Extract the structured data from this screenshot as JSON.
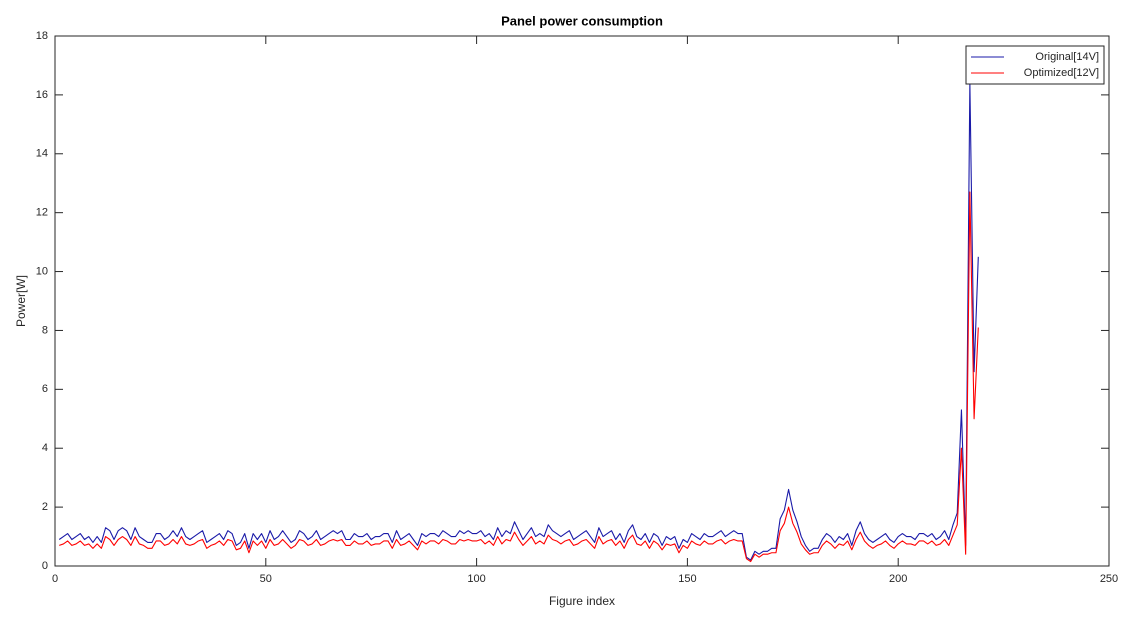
{
  "chart_data": {
    "type": "line",
    "title": "Panel power consumption",
    "x_label": "Figure index",
    "y_label": "Power[W]",
    "x": [
      1,
      2,
      3,
      4,
      5,
      6,
      7,
      8,
      9,
      10,
      11,
      12,
      13,
      14,
      15,
      16,
      17,
      18,
      19,
      20,
      21,
      22,
      23,
      24,
      25,
      26,
      27,
      28,
      29,
      30,
      31,
      32,
      33,
      34,
      35,
      36,
      37,
      38,
      39,
      40,
      41,
      42,
      43,
      44,
      45,
      46,
      47,
      48,
      49,
      50,
      51,
      52,
      53,
      54,
      55,
      56,
      57,
      58,
      59,
      60,
      61,
      62,
      63,
      64,
      65,
      66,
      67,
      68,
      69,
      70,
      71,
      72,
      73,
      74,
      75,
      76,
      77,
      78,
      79,
      80,
      81,
      82,
      83,
      84,
      85,
      86,
      87,
      88,
      89,
      90,
      91,
      92,
      93,
      94,
      95,
      96,
      97,
      98,
      99,
      100,
      101,
      102,
      103,
      104,
      105,
      106,
      107,
      108,
      109,
      110,
      111,
      112,
      113,
      114,
      115,
      116,
      117,
      118,
      119,
      120,
      121,
      122,
      123,
      124,
      125,
      126,
      127,
      128,
      129,
      130,
      131,
      132,
      133,
      134,
      135,
      136,
      137,
      138,
      139,
      140,
      141,
      142,
      143,
      144,
      145,
      146,
      147,
      148,
      149,
      150,
      151,
      152,
      153,
      154,
      155,
      156,
      157,
      158,
      159,
      160,
      161,
      162,
      163,
      164,
      165,
      166,
      167,
      168,
      169,
      170,
      171,
      172,
      173,
      174,
      175,
      176,
      177,
      178,
      179,
      180,
      181,
      182,
      183,
      184,
      185,
      186,
      187,
      188,
      189,
      190,
      191,
      192,
      193,
      194,
      195,
      196,
      197,
      198,
      199,
      200,
      201,
      202,
      203,
      204,
      205,
      206,
      207,
      208,
      209,
      210,
      211,
      212,
      213,
      214,
      215,
      216,
      217,
      218,
      219
    ],
    "series": [
      {
        "name": "Original[14V]",
        "color": "#1a1aa8",
        "values": [
          0.9,
          1.0,
          1.1,
          0.9,
          1.0,
          1.1,
          0.9,
          1.0,
          0.8,
          1.0,
          0.8,
          1.3,
          1.2,
          0.9,
          1.2,
          1.3,
          1.2,
          0.9,
          1.3,
          1.0,
          0.9,
          0.8,
          0.8,
          1.1,
          1.1,
          0.9,
          1.0,
          1.2,
          1.0,
          1.3,
          1.0,
          0.9,
          1.0,
          1.1,
          1.2,
          0.8,
          0.9,
          1.0,
          1.1,
          0.9,
          1.2,
          1.1,
          0.7,
          0.8,
          1.1,
          0.6,
          1.1,
          0.9,
          1.1,
          0.8,
          1.2,
          0.9,
          1.0,
          1.2,
          1.0,
          0.8,
          0.9,
          1.2,
          1.1,
          0.9,
          1.0,
          1.2,
          0.9,
          1.0,
          1.1,
          1.2,
          1.1,
          1.2,
          0.9,
          0.9,
          1.1,
          1.0,
          1.0,
          1.1,
          0.9,
          1.0,
          1.0,
          1.1,
          1.1,
          0.8,
          1.2,
          0.9,
          1.0,
          1.1,
          0.9,
          0.7,
          1.1,
          1.0,
          1.1,
          1.1,
          1.0,
          1.2,
          1.1,
          1.0,
          1.0,
          1.2,
          1.1,
          1.2,
          1.1,
          1.1,
          1.2,
          1.0,
          1.1,
          0.9,
          1.3,
          1.0,
          1.2,
          1.1,
          1.5,
          1.2,
          0.9,
          1.1,
          1.3,
          1.0,
          1.1,
          1.0,
          1.4,
          1.2,
          1.1,
          1.0,
          1.1,
          1.2,
          0.9,
          1.0,
          1.1,
          1.2,
          1.0,
          0.8,
          1.3,
          1.0,
          1.1,
          1.2,
          0.9,
          1.1,
          0.8,
          1.2,
          1.4,
          1.0,
          0.9,
          1.1,
          0.8,
          1.1,
          1.0,
          0.7,
          1.0,
          0.9,
          1.0,
          0.6,
          0.9,
          0.8,
          1.1,
          1.0,
          0.9,
          1.1,
          1.0,
          1.0,
          1.1,
          1.2,
          1.0,
          1.1,
          1.2,
          1.1,
          1.1,
          0.3,
          0.2,
          0.5,
          0.4,
          0.5,
          0.5,
          0.6,
          0.6,
          1.6,
          1.9,
          2.6,
          1.9,
          1.5,
          1.0,
          0.7,
          0.5,
          0.6,
          0.6,
          0.9,
          1.1,
          1.0,
          0.8,
          1.0,
          0.9,
          1.1,
          0.7,
          1.2,
          1.5,
          1.1,
          0.9,
          0.8,
          0.9,
          1.0,
          1.1,
          0.9,
          0.8,
          1.0,
          1.1,
          1.0,
          1.0,
          0.9,
          1.1,
          1.1,
          1.0,
          1.1,
          0.9,
          1.0,
          1.2,
          0.9,
          1.4,
          1.8,
          5.3,
          0.7,
          16.4,
          6.6,
          10.5
        ]
      },
      {
        "name": "Optimized[12V]",
        "color": "#ff0000",
        "values": [
          0.7,
          0.75,
          0.85,
          0.7,
          0.75,
          0.85,
          0.7,
          0.75,
          0.6,
          0.75,
          0.6,
          1.0,
          0.9,
          0.7,
          0.9,
          1.0,
          0.9,
          0.7,
          1.0,
          0.75,
          0.7,
          0.6,
          0.6,
          0.85,
          0.85,
          0.7,
          0.75,
          0.9,
          0.75,
          1.0,
          0.75,
          0.7,
          0.75,
          0.85,
          0.9,
          0.6,
          0.7,
          0.75,
          0.85,
          0.7,
          0.9,
          0.85,
          0.55,
          0.6,
          0.85,
          0.45,
          0.85,
          0.7,
          0.85,
          0.6,
          0.9,
          0.7,
          0.75,
          0.9,
          0.75,
          0.6,
          0.7,
          0.9,
          0.85,
          0.7,
          0.75,
          0.9,
          0.7,
          0.75,
          0.85,
          0.9,
          0.85,
          0.9,
          0.7,
          0.7,
          0.85,
          0.75,
          0.75,
          0.85,
          0.7,
          0.75,
          0.75,
          0.85,
          0.85,
          0.6,
          0.9,
          0.7,
          0.75,
          0.85,
          0.7,
          0.55,
          0.85,
          0.75,
          0.85,
          0.85,
          0.75,
          0.9,
          0.85,
          0.75,
          0.75,
          0.9,
          0.85,
          0.9,
          0.85,
          0.85,
          0.9,
          0.75,
          0.85,
          0.7,
          1.0,
          0.75,
          0.9,
          0.85,
          1.15,
          0.9,
          0.7,
          0.85,
          1.0,
          0.75,
          0.85,
          0.75,
          1.05,
          0.9,
          0.85,
          0.75,
          0.85,
          0.9,
          0.7,
          0.75,
          0.85,
          0.9,
          0.75,
          0.6,
          1.0,
          0.75,
          0.85,
          0.9,
          0.7,
          0.85,
          0.6,
          0.9,
          1.05,
          0.75,
          0.7,
          0.85,
          0.6,
          0.85,
          0.75,
          0.55,
          0.75,
          0.7,
          0.75,
          0.45,
          0.7,
          0.6,
          0.85,
          0.75,
          0.7,
          0.85,
          0.75,
          0.75,
          0.85,
          0.9,
          0.75,
          0.85,
          0.9,
          0.85,
          0.85,
          0.25,
          0.15,
          0.4,
          0.3,
          0.4,
          0.4,
          0.45,
          0.45,
          1.2,
          1.45,
          2.0,
          1.45,
          1.15,
          0.75,
          0.55,
          0.4,
          0.45,
          0.45,
          0.7,
          0.85,
          0.75,
          0.6,
          0.75,
          0.7,
          0.85,
          0.55,
          0.9,
          1.15,
          0.85,
          0.7,
          0.6,
          0.7,
          0.75,
          0.85,
          0.7,
          0.6,
          0.75,
          0.85,
          0.75,
          0.75,
          0.7,
          0.85,
          0.85,
          0.75,
          0.85,
          0.7,
          0.75,
          0.9,
          0.7,
          1.05,
          1.4,
          4.0,
          0.4,
          12.7,
          5.0,
          8.1
        ]
      }
    ],
    "xlim": [
      0,
      250
    ],
    "xticks": [
      0,
      50,
      100,
      150,
      200,
      250
    ],
    "ylim": [
      0,
      18
    ],
    "yticks": [
      0,
      2,
      4,
      6,
      8,
      10,
      12,
      14,
      16,
      18
    ],
    "grid": false,
    "legend": "top-right"
  }
}
